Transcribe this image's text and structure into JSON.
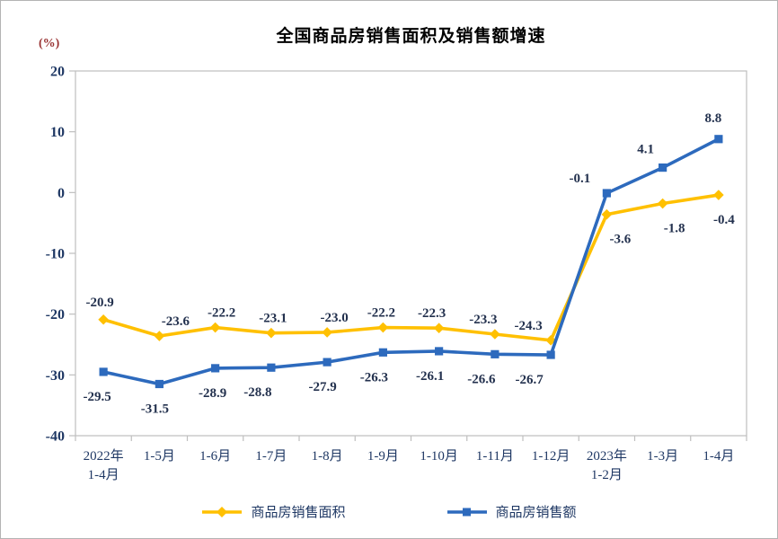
{
  "title": "全国商品房销售面积及销售额增速",
  "y_axis_unit": "(%)",
  "legend": [
    {
      "label": "商品房销售面积",
      "color": "#FFC000",
      "marker": "diamond"
    },
    {
      "label": "商品房销售额",
      "color": "#2D6ABD",
      "marker": "square"
    }
  ],
  "colors": {
    "series_area": "#FFC000",
    "series_amount": "#2D6ABD",
    "axis_border": "#BFBFBF",
    "axis_text": "#1F3864",
    "data_label_text": "#23314e",
    "unit_label_text": "#993333",
    "title_text": "#000000"
  },
  "chart_data": {
    "type": "line",
    "title": "全国商品房销售面积及销售额增速",
    "y_unit": "(%)",
    "categories": [
      [
        "2022年",
        "1-4月"
      ],
      [
        "1-5月"
      ],
      [
        "1-6月"
      ],
      [
        "1-7月"
      ],
      [
        "1-8月"
      ],
      [
        "1-9月"
      ],
      [
        "1-10月"
      ],
      [
        "1-11月"
      ],
      [
        "1-12月"
      ],
      [
        "2023年",
        "1-2月"
      ],
      [
        "1-3月"
      ],
      [
        "1-4月"
      ]
    ],
    "series": [
      {
        "name": "商品房销售面积",
        "color": "#FFC000",
        "marker": "diamond",
        "values": [
          -20.9,
          -23.6,
          -22.2,
          -23.1,
          -23.0,
          -22.2,
          -22.3,
          -23.3,
          -24.3,
          -3.6,
          -1.8,
          -0.4
        ],
        "labels": [
          "-20.9",
          "-23.6",
          "-22.2",
          "-23.1",
          "-23.0",
          "-22.2",
          "-22.3",
          "-23.3",
          "-24.3",
          "-3.6",
          "-1.8",
          "-0.4"
        ],
        "label_dx": [
          -4,
          18,
          7,
          2,
          8,
          -2,
          -8,
          -13,
          -25,
          15,
          13,
          6
        ],
        "label_dy": [
          -20,
          -17,
          -17,
          -17,
          -17,
          -17,
          -17,
          -17,
          -17,
          27,
          27,
          27
        ]
      },
      {
        "name": "商品房销售额",
        "color": "#2D6ABD",
        "marker": "square",
        "values": [
          -29.5,
          -31.5,
          -28.9,
          -28.8,
          -27.9,
          -26.3,
          -26.1,
          -26.6,
          -26.7,
          -0.1,
          4.1,
          8.8
        ],
        "labels": [
          "-29.5",
          "-31.5",
          "-28.9",
          "-28.8",
          "-27.9",
          "-26.3",
          "-26.1",
          "-26.6",
          "-26.7",
          "-0.1",
          "4.1",
          "8.8"
        ],
        "label_dx": [
          -7,
          -5,
          -3,
          -15,
          -5,
          -10,
          -10,
          -15,
          -24,
          -30,
          -19,
          -6
        ],
        "label_dy": [
          27,
          27,
          27,
          27,
          27,
          27,
          27,
          27,
          27,
          -17,
          -21,
          -24
        ]
      }
    ],
    "ylim": [
      -40,
      20
    ],
    "yticks": [
      20,
      10,
      0,
      -10,
      -20,
      -30,
      -40
    ],
    "grid": false,
    "legend_position": "bottom"
  }
}
